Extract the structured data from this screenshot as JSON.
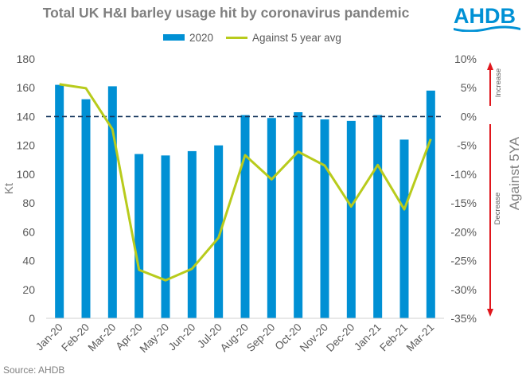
{
  "title": "Total UK H&I barley usage hit by coronavirus pandemic",
  "logo_text": "AHDB",
  "source": "Source: AHDB",
  "colors": {
    "bar": "#0090d4",
    "line": "#b8cb1c",
    "arrow": "#e0161c",
    "logo": "#0091d5"
  },
  "chart_data": {
    "type": "bar",
    "categories": [
      "Jan-20",
      "Feb-20",
      "Mar-20",
      "Apr-20",
      "May-20",
      "Jun-20",
      "Jul-20",
      "Aug-20",
      "Sep-20",
      "Oct-20",
      "Nov-20",
      "Dec-20",
      "Jan-21",
      "Feb-21",
      "Mar-21"
    ],
    "series": [
      {
        "name": "2020",
        "type": "bar",
        "axis": "left",
        "values": [
          162,
          152,
          161,
          114,
          113,
          116,
          120,
          141,
          139,
          143,
          138,
          137,
          141,
          124,
          158
        ]
      },
      {
        "name": "Against 5 year avg",
        "type": "line",
        "axis": "right",
        "values": [
          5.6,
          4.9,
          -2.2,
          -26.6,
          -28.4,
          -26.4,
          -21.0,
          -6.7,
          -10.9,
          -6.1,
          -8.5,
          -15.6,
          -8.4,
          -16.1,
          -3.9
        ]
      }
    ],
    "ylabel": "Kt",
    "ylim": [
      0,
      180
    ],
    "yticks": [
      "0",
      "20",
      "40",
      "60",
      "80",
      "100",
      "120",
      "140",
      "160",
      "180"
    ],
    "y2label": "Against 5YA",
    "y2lim": [
      -35,
      10
    ],
    "y2ticks": [
      "-35%",
      "-30%",
      "-25%",
      "-20%",
      "-15%",
      "-10%",
      "-5%",
      "0%",
      "5%",
      "10%"
    ],
    "reference_line": 0,
    "annotations": {
      "increase": "Increase",
      "decrease": "Decrease"
    },
    "grid": false,
    "legend": "top"
  }
}
